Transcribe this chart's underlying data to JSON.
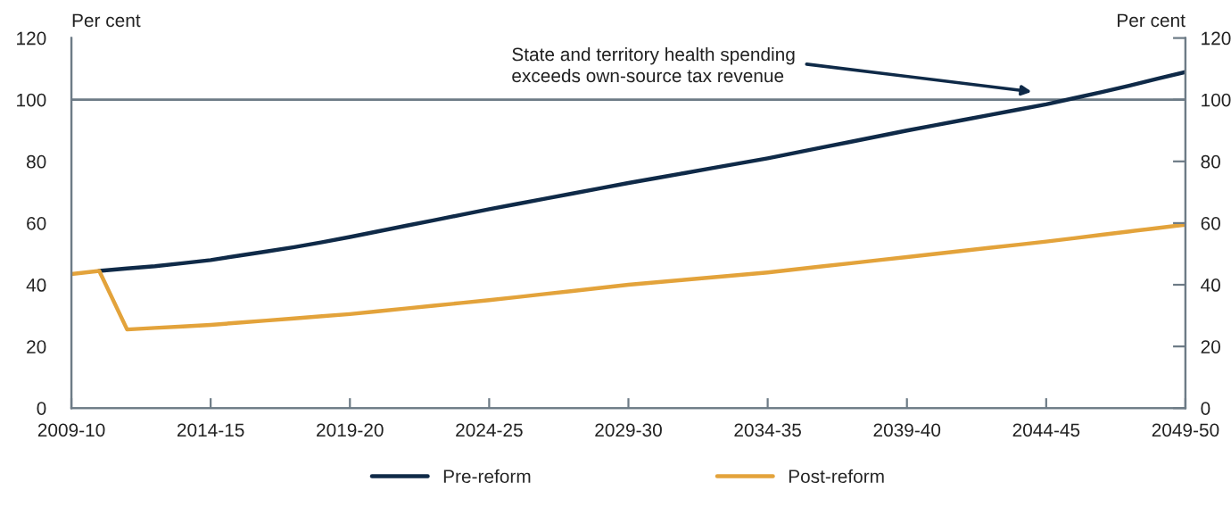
{
  "chart_data": {
    "type": "line",
    "ylabel": "Per cent",
    "y2label": "Per cent",
    "categories": [
      "2009-10",
      null,
      null,
      null,
      null,
      "2014-15",
      null,
      null,
      null,
      null,
      "2019-20",
      null,
      null,
      null,
      null,
      "2024-25",
      null,
      null,
      null,
      null,
      "2029-30",
      null,
      null,
      null,
      null,
      "2034-35",
      null,
      null,
      null,
      null,
      "2039-40",
      null,
      null,
      null,
      null,
      "2044-45",
      null,
      null,
      null,
      null,
      "2049-50"
    ],
    "series": [
      {
        "name": "Pre-reform",
        "color": "#0f2a48",
        "values": [
          null,
          44.5,
          45.3,
          46,
          47,
          48,
          49.4,
          50.8,
          52.2,
          53.8,
          55.5,
          57.3,
          59.1,
          60.9,
          62.7,
          64.5,
          66.2,
          67.9,
          69.6,
          71.3,
          73,
          74.6,
          76.2,
          77.8,
          79.4,
          81,
          82.8,
          84.6,
          86.4,
          88.2,
          90,
          91.7,
          93.4,
          95.1,
          96.8,
          98.5,
          100.5,
          102.5,
          104.6,
          106.8,
          109
        ]
      },
      {
        "name": "Post-reform",
        "color": "#e3a33b",
        "values": [
          43.5,
          44.5,
          25.5,
          26,
          26.5,
          27,
          27.7,
          28.4,
          29.1,
          29.8,
          30.5,
          31.4,
          32.3,
          33.2,
          34.1,
          35,
          36,
          37,
          38,
          39,
          40,
          40.8,
          41.6,
          42.4,
          43.2,
          44,
          45,
          46,
          47,
          48,
          49,
          50,
          51,
          52,
          53,
          54,
          55.1,
          56.2,
          57.3,
          58.4,
          59.5
        ]
      }
    ],
    "ylim": [
      0,
      120
    ],
    "yticks": [
      0,
      20,
      40,
      60,
      80,
      100,
      120
    ],
    "y2lim": [
      0,
      120
    ],
    "y2ticks": [
      0,
      20,
      40,
      60,
      80,
      100,
      120
    ],
    "ref_lines": [
      {
        "axis": "y",
        "value": 100,
        "color": "#6d7b86"
      }
    ],
    "annotations": [
      "State and territory health spending\nexceeds own-source tax revenue"
    ],
    "grid": false,
    "legend": "bottom",
    "marker": "none",
    "line_style": "solid"
  }
}
